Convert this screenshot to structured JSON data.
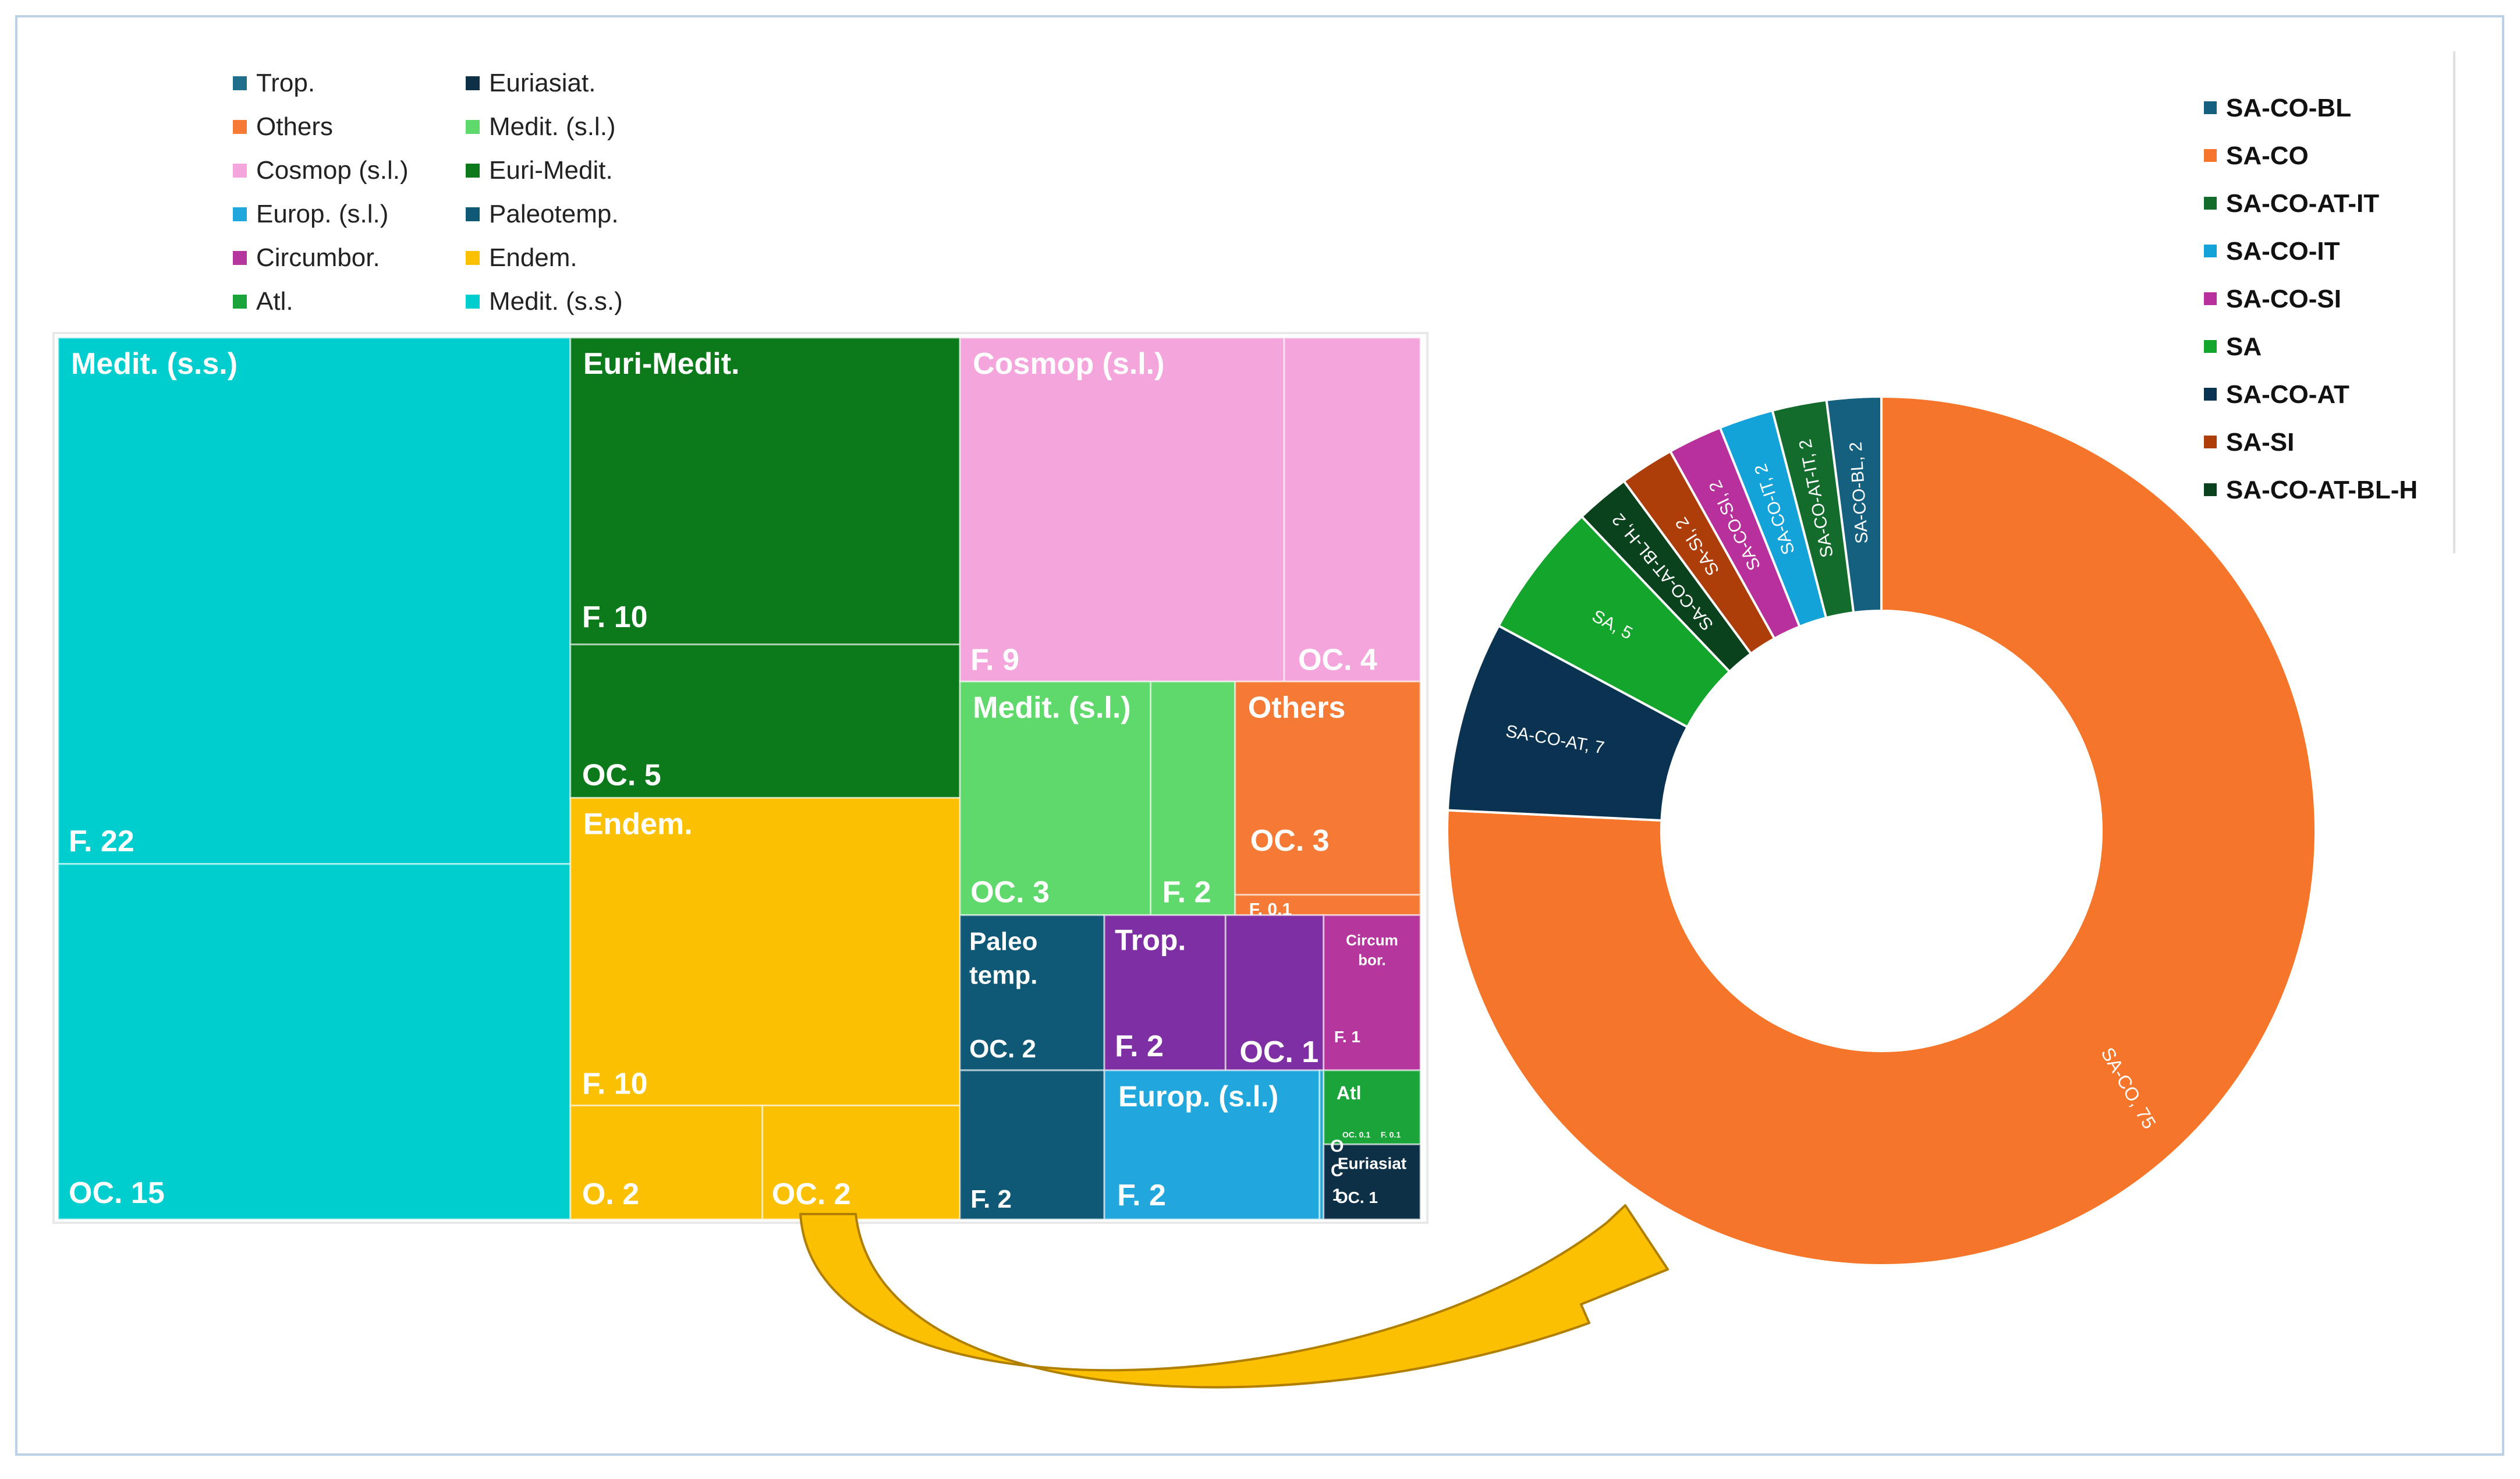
{
  "chart_data": [
    {
      "type": "treemap",
      "title": "",
      "legend": {
        "placement": "top",
        "entries": [
          {
            "label": "Trop.",
            "color": "#1f6e8c"
          },
          {
            "label": "Others",
            "color": "#f47a35"
          },
          {
            "label": "Cosmop (s.l.)",
            "color": "#f4a6dc"
          },
          {
            "label": "Europ. (s.l.)",
            "color": "#22a7dc"
          },
          {
            "label": "Circumbor.",
            "color": "#b5369c"
          },
          {
            "label": "Atl.",
            "color": "#1aa43a"
          },
          {
            "label": "Euriasiat.",
            "color": "#0e3046"
          },
          {
            "label": "Medit. (s.l.)",
            "color": "#60d96c"
          },
          {
            "label": "Euri-Medit.",
            "color": "#0c7a1a"
          },
          {
            "label": "Paleotemp.",
            "color": "#0f5876"
          },
          {
            "label": "Endem.",
            "color": "#fcc002"
          },
          {
            "label": "Medit. (s.s.)",
            "color": "#00cdcd"
          }
        ]
      },
      "groups": [
        {
          "label": "Medit. (s.s.)",
          "color": "#00cdcd",
          "items": [
            {
              "label": "F. 22",
              "type": "F",
              "value": 22
            },
            {
              "label": "OC. 15",
              "type": "OC",
              "value": 15
            }
          ]
        },
        {
          "label": "Euri-Medit.",
          "color": "#0c7a1a",
          "items": [
            {
              "label": "F. 10",
              "type": "F",
              "value": 10
            },
            {
              "label": "OC. 5",
              "type": "OC",
              "value": 5
            }
          ]
        },
        {
          "label": "Endem.",
          "color": "#fcc002",
          "items": [
            {
              "label": "F. 10",
              "type": "F",
              "value": 10
            },
            {
              "label": "O. 2",
              "type": "O",
              "value": 2
            },
            {
              "label": "OC. 2",
              "type": "OC",
              "value": 2
            }
          ]
        },
        {
          "label": "Cosmop (s.l.)",
          "color": "#f4a6dc",
          "items": [
            {
              "label": "F. 9",
              "type": "F",
              "value": 9
            },
            {
              "label": "OC. 4",
              "type": "OC",
              "value": 4
            }
          ]
        },
        {
          "label": "Medit. (s.l.)",
          "color": "#60d96c",
          "items": [
            {
              "label": "OC. 3",
              "type": "OC",
              "value": 3
            },
            {
              "label": "F. 2",
              "type": "F",
              "value": 2
            }
          ]
        },
        {
          "label": "Others",
          "color": "#f47a35",
          "items": [
            {
              "label": "OC. 3",
              "type": "OC",
              "value": 3
            },
            {
              "label": "F. 0.1",
              "type": "F",
              "value": 0.1
            }
          ]
        },
        {
          "label": "Paleo temp.",
          "color": "#0f5876",
          "items": [
            {
              "label": "OC. 2",
              "type": "OC",
              "value": 2
            },
            {
              "label": "F. 2",
              "type": "F",
              "value": 2
            }
          ]
        },
        {
          "label": "Trop.",
          "color": "#7e2fa3",
          "items": [
            {
              "label": "F. 2",
              "type": "F",
              "value": 2
            },
            {
              "label": "OC. 1",
              "type": "OC",
              "value": 1
            }
          ]
        },
        {
          "label": "Circum bor.",
          "color": "#b5369c",
          "items": [
            {
              "label": "F. 1",
              "type": "F",
              "value": 1
            }
          ]
        },
        {
          "label": "Europ. (s.l.)",
          "color": "#22a7dc",
          "items": [
            {
              "label": "F. 2",
              "type": "F",
              "value": 2
            },
            {
              "label": "OC 1",
              "type": "OC",
              "value": 1
            }
          ]
        },
        {
          "label": "Atl",
          "color": "#1aa43a",
          "items": [
            {
              "label": "OC. 0.1",
              "type": "OC",
              "value": 0.1
            },
            {
              "label": "F. 0.1",
              "type": "F",
              "value": 0.1
            }
          ]
        },
        {
          "label": "Euriasiat",
          "color": "#0e3046",
          "items": [
            {
              "label": "OC. 1",
              "type": "OC",
              "value": 1
            }
          ]
        }
      ]
    },
    {
      "type": "pie",
      "subtype": "donut",
      "title": "",
      "legend": {
        "placement": "top-right",
        "entries": [
          {
            "label": "SA-CO-BL",
            "color": "#15607e"
          },
          {
            "label": "SA-CO",
            "color": "#f5762a"
          },
          {
            "label": "SA-CO-AT-IT",
            "color": "#136b2c"
          },
          {
            "label": "SA-CO-IT",
            "color": "#14a3d9"
          },
          {
            "label": "SA-CO-SI",
            "color": "#b8309c"
          },
          {
            "label": "SA",
            "color": "#13a52c"
          },
          {
            "label": "SA-CO-AT",
            "color": "#0a3352"
          },
          {
            "label": "SA-SI",
            "color": "#ad3d09"
          },
          {
            "label": "SA-CO-AT-BL-H",
            "color": "#0b421e"
          }
        ]
      },
      "slices": [
        {
          "label": "SA-CO",
          "value": 75,
          "color": "#f5762a",
          "data_label": "SA-CO, 75"
        },
        {
          "label": "SA-CO-AT",
          "value": 7,
          "color": "#0a3352",
          "data_label": "SA-CO-AT, 7"
        },
        {
          "label": "SA",
          "value": 5,
          "color": "#13a52c",
          "data_label": "SA, 5"
        },
        {
          "label": "SA-CO-AT-BL-H",
          "value": 2,
          "color": "#0b421e",
          "data_label": "SA-CO-AT-BL-H, 2"
        },
        {
          "label": "SA-SI",
          "value": 2,
          "color": "#ad3d09",
          "data_label": "SA-SI, 2"
        },
        {
          "label": "SA-CO-SI",
          "value": 2,
          "color": "#b8309c",
          "data_label": "SA-CO-SI, 2"
        },
        {
          "label": "SA-CO-IT",
          "value": 2,
          "color": "#14a3d9",
          "data_label": "SA-CO-IT, 2"
        },
        {
          "label": "SA-CO-AT-IT",
          "value": 2,
          "color": "#136b2c",
          "data_label": "SA-CO-AT-IT, 2"
        },
        {
          "label": "SA-CO-BL",
          "value": 2,
          "color": "#15607e",
          "data_label": "SA-CO-BL, 2"
        }
      ]
    }
  ],
  "arrow": {
    "color": "#fcc002",
    "edge_color": "#b07f00"
  }
}
